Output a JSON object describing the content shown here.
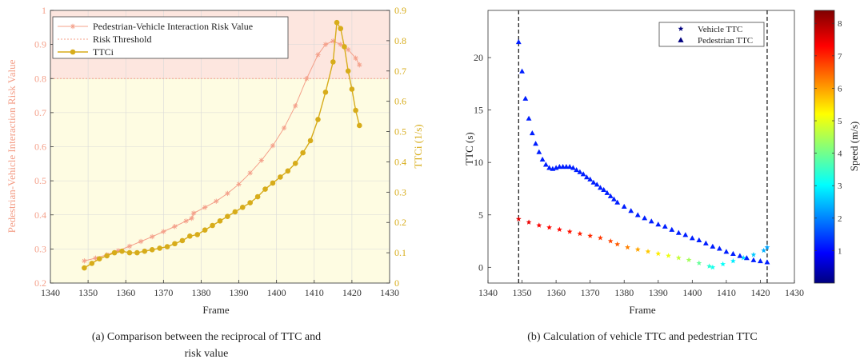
{
  "chart_data": [
    {
      "type": "line",
      "title": "",
      "xlabel": "Frame",
      "ylabel_left": "Pedestrian-Vehicle Interaction Risk Value",
      "ylabel_right": "TTCi (1/s)",
      "xlim": [
        1340,
        1430
      ],
      "ylim_left": [
        0.2,
        1
      ],
      "ylim_right": [
        0,
        0.9
      ],
      "xticks": [
        "1340",
        "1350",
        "1360",
        "1370",
        "1380",
        "1390",
        "1400",
        "1410",
        "1420",
        "1430"
      ],
      "yticks_left": [
        "0.2",
        "0.3",
        "0.4",
        "0.5",
        "0.6",
        "0.7",
        "0.8",
        "0.9",
        "1"
      ],
      "yticks_right": [
        "0",
        "0.1",
        "0.2",
        "0.3",
        "0.4",
        "0.5",
        "0.6",
        "0.7",
        "0.8",
        "0.9"
      ],
      "grid": true,
      "legend": [
        "Pedestrian-Vehicle Interaction Risk Value",
        "Risk Threshold",
        "TTCi"
      ],
      "legend_position": "top-left",
      "threshold": 0.8,
      "regions": {
        "above_threshold_color": "#fde6df",
        "below_threshold_color": "#fefce2"
      },
      "series": [
        {
          "name": "Pedestrian-Vehicle Interaction Risk Value",
          "axis": "left",
          "color": "#f4a08a",
          "marker": "asterisk",
          "x": [
            1349,
            1352,
            1355,
            1358,
            1361,
            1364,
            1367,
            1370,
            1373,
            1376,
            1377.5,
            1378,
            1381,
            1384,
            1387,
            1390,
            1393,
            1396,
            1399,
            1402,
            1405,
            1408,
            1411,
            1413,
            1415,
            1417,
            1419,
            1421,
            1422
          ],
          "values": [
            0.265,
            0.273,
            0.283,
            0.295,
            0.308,
            0.322,
            0.336,
            0.351,
            0.366,
            0.382,
            0.39,
            0.405,
            0.422,
            0.44,
            0.463,
            0.49,
            0.523,
            0.56,
            0.603,
            0.655,
            0.72,
            0.8,
            0.87,
            0.9,
            0.91,
            0.9,
            0.885,
            0.86,
            0.84
          ]
        },
        {
          "name": "Risk Threshold",
          "axis": "left",
          "color": "#f4a08a",
          "style": "dashed",
          "x": [
            1340,
            1430
          ],
          "values": [
            0.8,
            0.8
          ]
        },
        {
          "name": "TTCi",
          "axis": "right",
          "color": "#d7ac1a",
          "marker": "circle",
          "x": [
            1349,
            1351,
            1353,
            1355,
            1357,
            1359,
            1361,
            1363,
            1365,
            1367,
            1369,
            1371,
            1373,
            1375,
            1377,
            1379,
            1381,
            1383,
            1385,
            1387,
            1389,
            1391,
            1393,
            1395,
            1397,
            1399,
            1401,
            1403,
            1405,
            1407,
            1409,
            1411,
            1413,
            1415,
            1416,
            1417,
            1418,
            1419,
            1420,
            1421,
            1422
          ],
          "values": [
            0.05,
            0.065,
            0.08,
            0.09,
            0.1,
            0.105,
            0.1,
            0.1,
            0.105,
            0.11,
            0.115,
            0.12,
            0.13,
            0.14,
            0.155,
            0.16,
            0.175,
            0.19,
            0.205,
            0.22,
            0.235,
            0.25,
            0.265,
            0.285,
            0.31,
            0.33,
            0.35,
            0.37,
            0.395,
            0.43,
            0.47,
            0.54,
            0.63,
            0.73,
            0.86,
            0.84,
            0.78,
            0.7,
            0.64,
            0.57,
            0.52
          ]
        }
      ],
      "caption_line1": "(a) Comparison between the reciprocal of TTC and",
      "caption_line2": "risk value"
    },
    {
      "type": "scatter",
      "title": "",
      "xlabel": "Frame",
      "ylabel": "TTC (s)",
      "xlim": [
        1340,
        1430
      ],
      "ylim": [
        -1.5,
        24.5
      ],
      "xticks": [
        "1340",
        "1350",
        "1360",
        "1370",
        "1380",
        "1390",
        "1400",
        "1410",
        "1420",
        "1430"
      ],
      "yticks": [
        "0",
        "5",
        "10",
        "15",
        "20"
      ],
      "grid": false,
      "legend": [
        "Vehicle TTC",
        "Pedestrian TTC"
      ],
      "legend_position": "top-right",
      "vertical_lines": [
        1349,
        1422
      ],
      "colorbar": {
        "label": "Speed (m/s)",
        "min": 0,
        "max": 8.4,
        "ticks": [
          "1",
          "2",
          "3",
          "4",
          "5",
          "6",
          "7",
          "8"
        ]
      },
      "series": [
        {
          "name": "Vehicle TTC",
          "marker": "star",
          "x": [
            1349,
            1352,
            1355,
            1358,
            1361,
            1364,
            1367,
            1370,
            1373,
            1376,
            1378,
            1381,
            1384,
            1387,
            1390,
            1393,
            1396,
            1399,
            1402,
            1405,
            1406,
            1409,
            1412,
            1415,
            1418,
            1421,
            1422
          ],
          "values": [
            4.6,
            4.3,
            4.0,
            3.8,
            3.6,
            3.4,
            3.2,
            3.0,
            2.8,
            2.5,
            2.2,
            1.9,
            1.7,
            1.5,
            1.3,
            1.1,
            0.9,
            0.7,
            0.4,
            0.1,
            0.0,
            0.3,
            0.6,
            0.9,
            1.2,
            1.6,
            1.9
          ],
          "speed": [
            7.6,
            7.5,
            7.4,
            7.3,
            7.3,
            7.2,
            7.1,
            7.0,
            6.9,
            6.8,
            6.6,
            6.3,
            6.0,
            5.7,
            5.4,
            5.1,
            4.8,
            4.5,
            4.0,
            3.5,
            3.3,
            3.2,
            3.0,
            2.9,
            2.7,
            2.5,
            2.4
          ]
        },
        {
          "name": "Pedestrian TTC",
          "marker": "triangle",
          "x": [
            1349,
            1350,
            1351,
            1352,
            1353,
            1354,
            1355,
            1356,
            1357,
            1358,
            1359,
            1360,
            1361,
            1362,
            1363,
            1364,
            1365,
            1366,
            1367,
            1368,
            1369,
            1370,
            1371,
            1372,
            1373,
            1374,
            1375,
            1376,
            1377,
            1378,
            1380,
            1382,
            1384,
            1386,
            1388,
            1390,
            1392,
            1394,
            1396,
            1398,
            1400,
            1402,
            1404,
            1406,
            1408,
            1410,
            1412,
            1414,
            1416,
            1418,
            1420,
            1422
          ],
          "values": [
            21.5,
            18.7,
            16.1,
            14.2,
            12.8,
            11.8,
            11.0,
            10.3,
            9.8,
            9.5,
            9.4,
            9.5,
            9.6,
            9.6,
            9.6,
            9.6,
            9.5,
            9.3,
            9.1,
            8.9,
            8.6,
            8.4,
            8.1,
            7.9,
            7.6,
            7.4,
            7.1,
            6.8,
            6.5,
            6.2,
            5.8,
            5.4,
            5.0,
            4.7,
            4.4,
            4.1,
            3.9,
            3.6,
            3.3,
            3.1,
            2.8,
            2.6,
            2.3,
            2.0,
            1.8,
            1.5,
            1.3,
            1.1,
            0.9,
            0.7,
            0.6,
            0.5
          ],
          "speed": [
            1.3,
            1.3,
            1.3,
            1.3,
            1.3,
            1.3,
            1.3,
            1.3,
            1.3,
            1.3,
            1.3,
            1.3,
            1.3,
            1.3,
            1.3,
            1.3,
            1.3,
            1.3,
            1.3,
            1.3,
            1.3,
            1.3,
            1.3,
            1.3,
            1.3,
            1.3,
            1.3,
            1.3,
            1.3,
            1.3,
            1.3,
            1.3,
            1.3,
            1.3,
            1.3,
            1.3,
            1.3,
            1.3,
            1.3,
            1.3,
            1.3,
            1.3,
            1.3,
            1.3,
            1.3,
            1.3,
            1.3,
            1.3,
            1.3,
            1.3,
            1.3,
            1.3
          ]
        }
      ],
      "caption": "(b) Calculation of vehicle TTC and pedestrian TTC"
    }
  ]
}
